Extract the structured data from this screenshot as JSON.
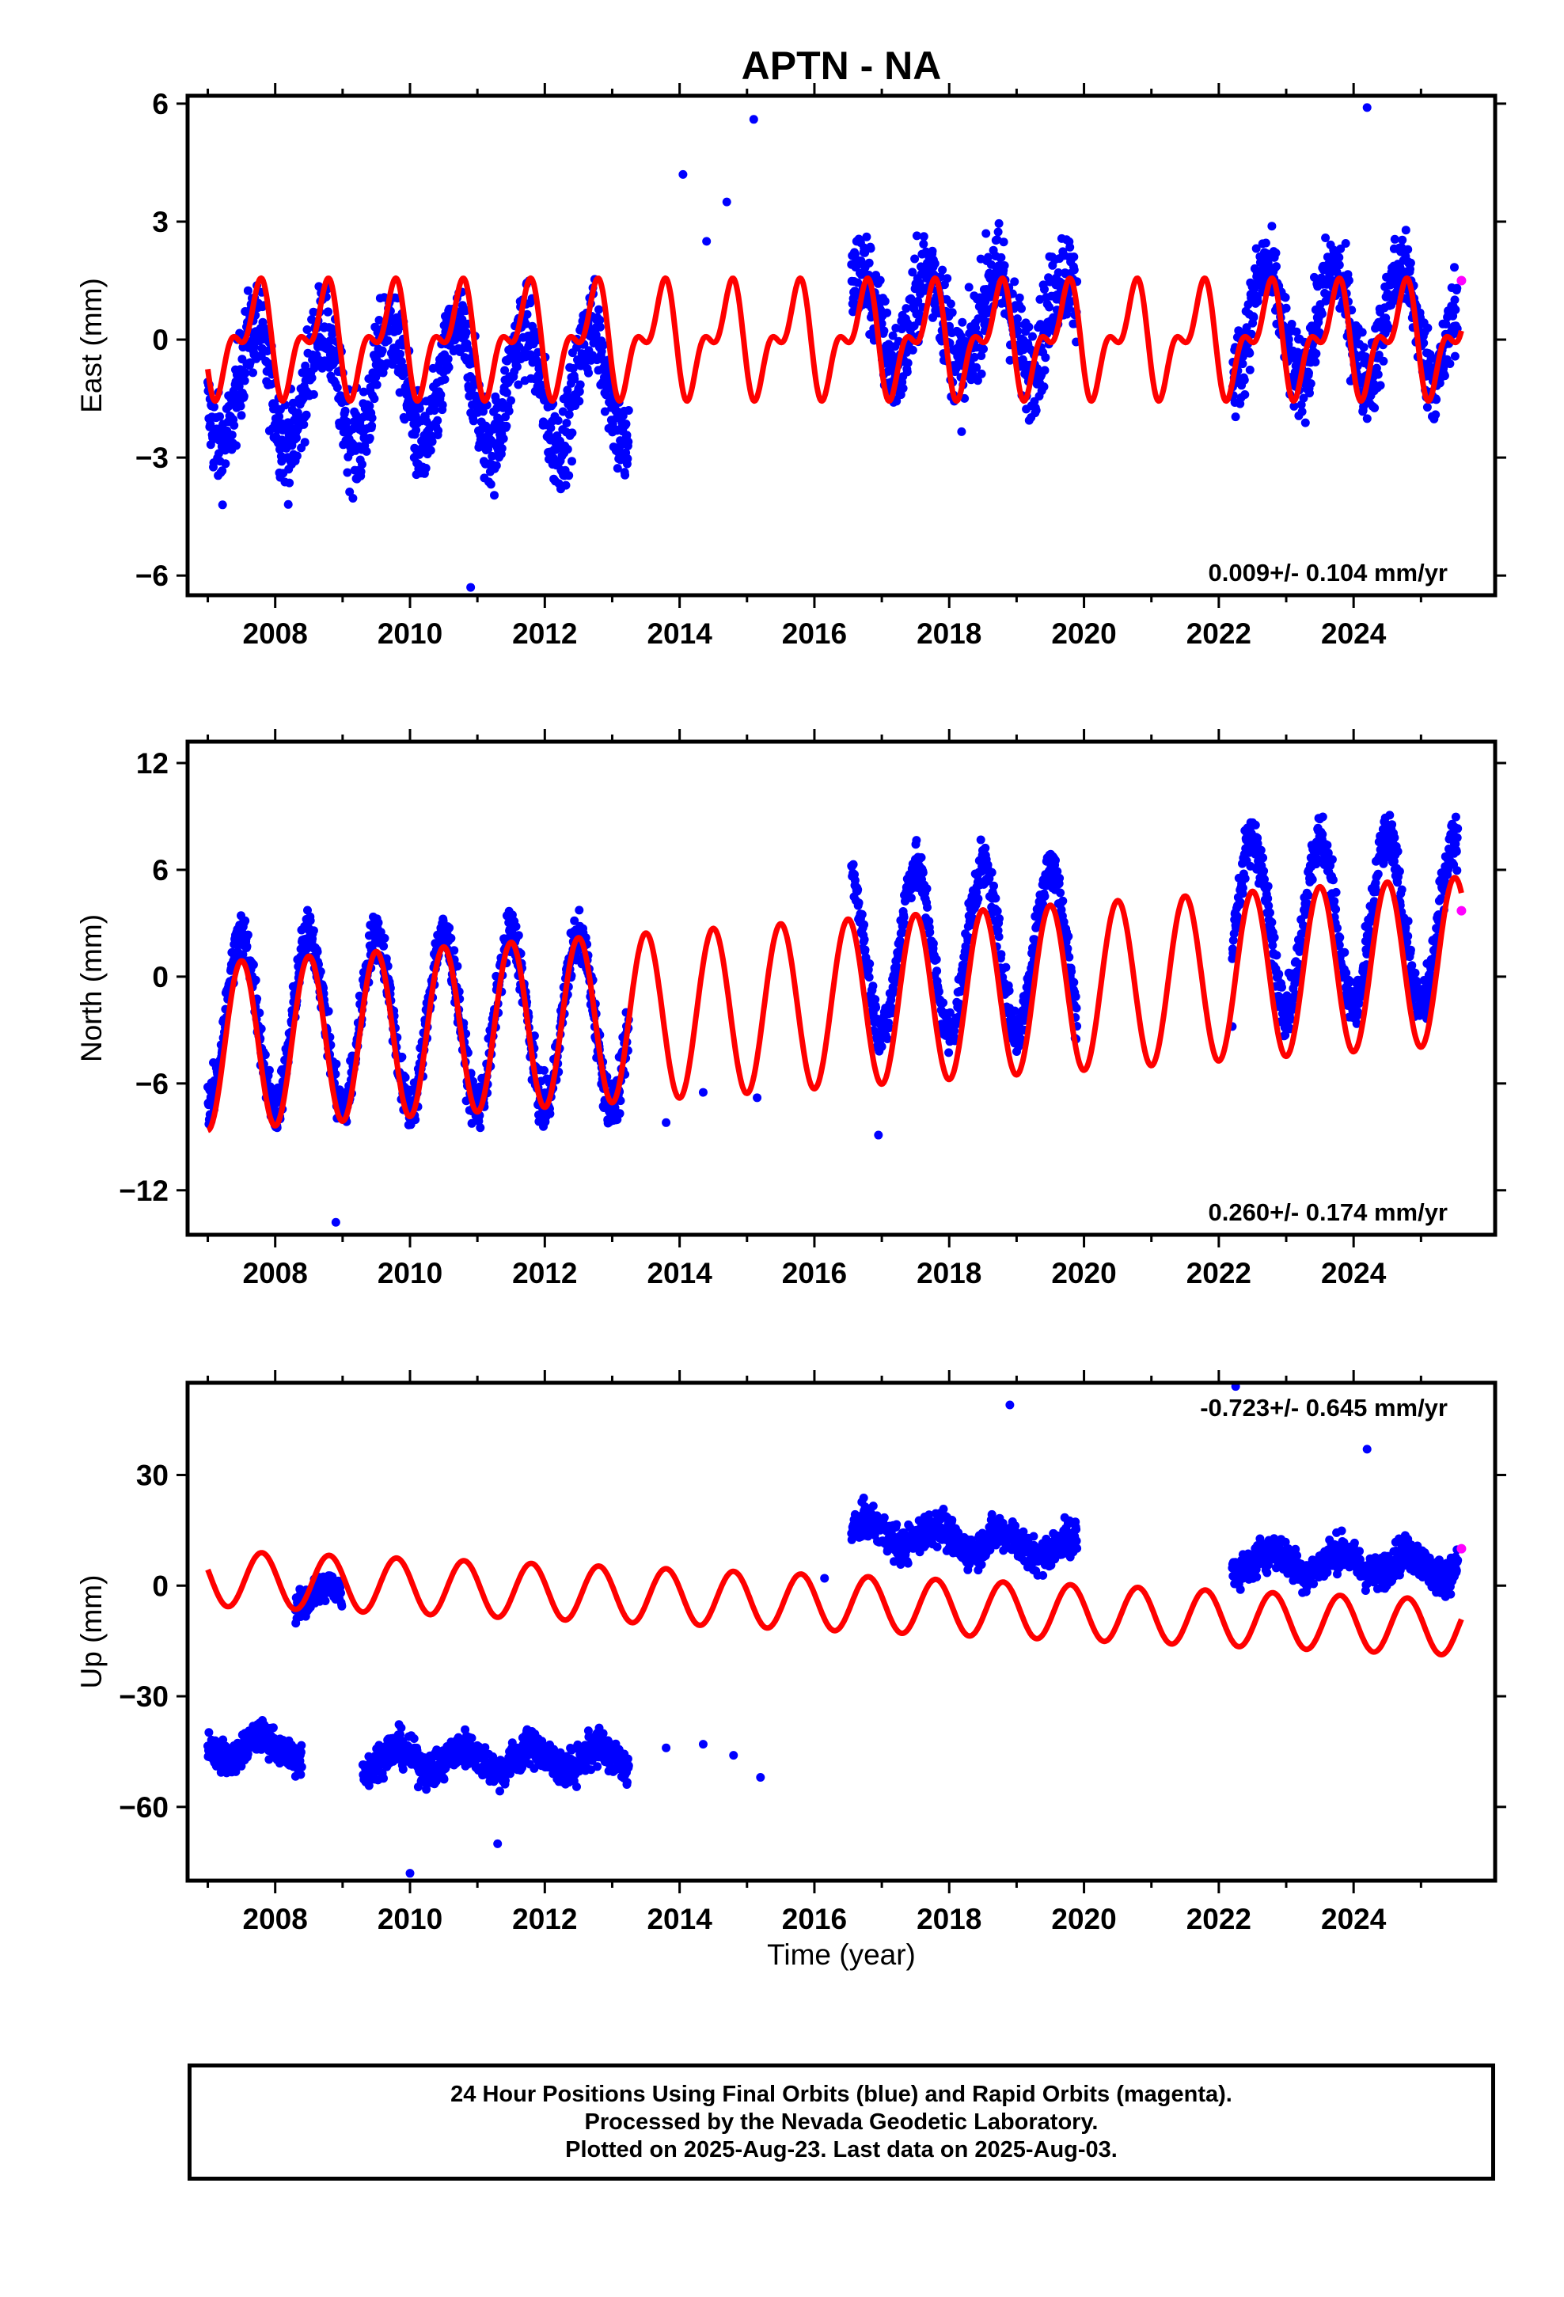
{
  "chart_data": {
    "type": "scatter",
    "title": "APTN - NA",
    "xlabel": "Time (year)",
    "x_ticks": [
      "2008",
      "2010",
      "2012",
      "2014",
      "2016",
      "2018",
      "2020",
      "2022",
      "2024"
    ],
    "xlim": [
      2006.7,
      2026.1
    ],
    "colors": {
      "final": "#0000ff",
      "rapid": "#ff00ff",
      "model": "#ff0000"
    },
    "legend": "none",
    "panels": [
      {
        "name": "east",
        "ylabel": "East (mm)",
        "ylim": [
          -6.5,
          6.2
        ],
        "yticks": [
          -6,
          -3,
          0,
          3,
          6
        ],
        "ytick_labels": [
          "−6",
          "−3",
          "0",
          "3",
          "6"
        ],
        "rate_text": "0.009+/- 0.104 mm/yr",
        "rate_position": "bottom-right",
        "data_segments": [
          {
            "start": 2007.0,
            "end": 2013.25,
            "base": -1.2,
            "trend": 0,
            "amp": 1.5,
            "noise": 1.1,
            "density": 2
          },
          {
            "start": 2016.55,
            "end": 2019.9,
            "base": 0.5,
            "trend": 0,
            "amp": 1.2,
            "noise": 1.2,
            "density": 2
          },
          {
            "start": 2022.2,
            "end": 2025.55,
            "base": 0.4,
            "trend": 0,
            "amp": 1.4,
            "noise": 1.0,
            "density": 2
          }
        ],
        "outliers": [
          {
            "x": 2014.05,
            "y": 4.2
          },
          {
            "x": 2014.4,
            "y": 2.5
          },
          {
            "x": 2014.7,
            "y": 3.5
          },
          {
            "x": 2015.1,
            "y": 5.6
          },
          {
            "x": 2024.2,
            "y": 5.9
          },
          {
            "x": 2010.9,
            "y": -6.3
          }
        ],
        "rapid_points": [
          {
            "x": 2025.6,
            "y": 1.5
          }
        ],
        "model": {
          "offset": 0.0,
          "trend": 0.0,
          "annual_amp": 1.1,
          "annual_phase": 0.45,
          "semiannual_amp": 0.7,
          "semiannual_phase": 0.7,
          "range": [
            2007.0,
            2025.6
          ]
        }
      },
      {
        "name": "north",
        "ylabel": "North (mm)",
        "ylim": [
          -14.5,
          13.2
        ],
        "yticks": [
          -12,
          -6,
          0,
          6,
          12
        ],
        "ytick_labels": [
          "−12",
          "−6",
          "0",
          "6",
          "12"
        ],
        "rate_text": "0.260+/- 0.174 mm/yr",
        "rate_position": "bottom-right",
        "data_segments": [
          {
            "start": 2007.0,
            "end": 2013.25,
            "base": -2.5,
            "trend": 0.0,
            "amp": 4.8,
            "noise": 1.3,
            "density": 2
          },
          {
            "start": 2016.55,
            "end": 2019.9,
            "base": 1.5,
            "trend": 0.0,
            "amp": 4.6,
            "noise": 1.3,
            "density": 2
          },
          {
            "start": 2022.2,
            "end": 2025.55,
            "base": 3.0,
            "trend": 0.0,
            "amp": 4.7,
            "noise": 1.4,
            "density": 2
          }
        ],
        "outliers": [
          {
            "x": 2013.8,
            "y": -8.2
          },
          {
            "x": 2014.35,
            "y": -6.5
          },
          {
            "x": 2015.15,
            "y": -6.8
          },
          {
            "x": 2016.95,
            "y": -8.9
          },
          {
            "x": 2022.2,
            "y": -2.8
          },
          {
            "x": 2008.9,
            "y": -13.8
          }
        ],
        "rapid_points": [
          {
            "x": 2025.6,
            "y": 3.7
          }
        ],
        "model": {
          "offset": -1.6,
          "trend": 0.26,
          "annual_amp": 4.7,
          "annual_phase": 0.25,
          "semiannual_amp": 0.0,
          "semiannual_phase": 0.0,
          "range": [
            2007.0,
            2025.6
          ]
        }
      },
      {
        "name": "up",
        "ylabel": "Up (mm)",
        "ylim": [
          -80,
          55
        ],
        "yticks": [
          -60,
          -30,
          0,
          30
        ],
        "ytick_labels": [
          "−60",
          "−30",
          "0",
          "30"
        ],
        "rate_text": "-0.723+/- 0.645 mm/yr",
        "rate_position": "top-right",
        "data_segments": [
          {
            "start": 2007.0,
            "end": 2008.4,
            "base": -44,
            "trend": 0,
            "amp": 3,
            "noise": 4,
            "density": 2
          },
          {
            "start": 2008.3,
            "end": 2009.0,
            "base": -3,
            "trend": 0,
            "amp": 3,
            "noise": 4,
            "density": 2
          },
          {
            "start": 2009.3,
            "end": 2013.25,
            "base": -47,
            "trend": 0,
            "amp": 3,
            "noise": 4.5,
            "density": 2
          },
          {
            "start": 2016.55,
            "end": 2019.9,
            "base": 15,
            "trend": -1.5,
            "amp": 3,
            "noise": 4.5,
            "density": 2
          },
          {
            "start": 2022.2,
            "end": 2025.55,
            "base": 7,
            "trend": -0.5,
            "amp": 3,
            "noise": 4.5,
            "density": 2
          }
        ],
        "outliers": [
          {
            "x": 2013.8,
            "y": -44
          },
          {
            "x": 2014.35,
            "y": -43
          },
          {
            "x": 2014.8,
            "y": -46
          },
          {
            "x": 2015.2,
            "y": -52
          },
          {
            "x": 2018.9,
            "y": 49
          },
          {
            "x": 2022.25,
            "y": 54
          },
          {
            "x": 2024.2,
            "y": 37
          },
          {
            "x": 2010.0,
            "y": -78
          },
          {
            "x": 2011.3,
            "y": -70
          },
          {
            "x": 2016.15,
            "y": 2
          }
        ],
        "rapid_points": [
          {
            "x": 2025.6,
            "y": 10
          }
        ],
        "model": {
          "offset": -4.5,
          "trend": -0.723,
          "annual_amp": 7.5,
          "annual_phase": 0.55,
          "semiannual_amp": 0.0,
          "semiannual_phase": 0.0,
          "range": [
            2007.0,
            2025.6
          ]
        }
      }
    ]
  },
  "footer": {
    "line1": "24 Hour Positions Using Final Orbits (blue) and Rapid Orbits (magenta).",
    "line2": "Processed by the Nevada Geodetic Laboratory.",
    "line3": "Plotted on 2025-Aug-23. Last data on 2025-Aug-03."
  }
}
